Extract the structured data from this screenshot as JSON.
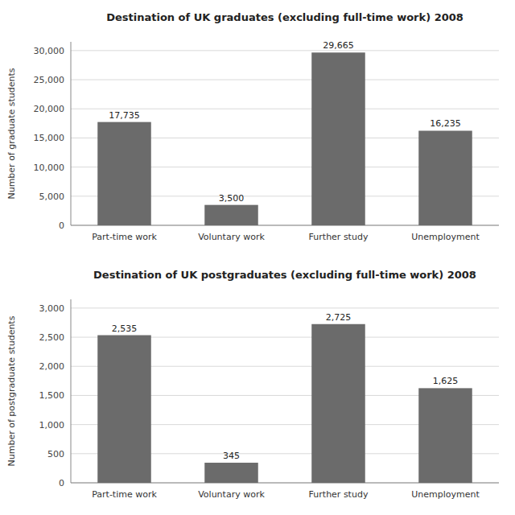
{
  "chart_data": [
    {
      "type": "bar",
      "title": "Destination of UK graduates (excluding full-time work) 2008",
      "ylabel": "Number of graduate students",
      "categories": [
        "Part-time work",
        "Voluntary work",
        "Further study",
        "Unemployment"
      ],
      "values": [
        17735,
        3500,
        29665,
        16235
      ],
      "value_labels": [
        "17,735",
        "3,500",
        "29,665",
        "16,235"
      ],
      "data_labels": true,
      "color": "#6b6b6b",
      "ylim": [
        0,
        31500
      ],
      "yticks": [
        0,
        {
          "value": 5000,
          "label": "5,000"
        },
        {
          "value": 10000,
          "label": "10,000"
        },
        {
          "value": 15000,
          "label": "15,000"
        },
        {
          "value": 20000,
          "label": "20,000"
        },
        {
          "value": 25000,
          "label": "25,000"
        },
        {
          "value": 30000,
          "label": "30,000"
        }
      ],
      "grid": true
    },
    {
      "type": "bar",
      "title": "Destination of UK postgraduates (excluding full-time work) 2008",
      "ylabel": "Number of postgraduate students",
      "categories": [
        "Part-time work",
        "Voluntary work",
        "Further study",
        "Unemployment"
      ],
      "values": [
        2535,
        345,
        2725,
        1625
      ],
      "value_labels": [
        "2,535",
        "345",
        "2,725",
        "1,625"
      ],
      "data_labels": true,
      "color": "#6b6b6b",
      "ylim": [
        0,
        3150
      ],
      "yticks": [
        0,
        500,
        {
          "value": 1000,
          "label": "1,000"
        },
        {
          "value": 1500,
          "label": "1,500"
        },
        {
          "value": 2000,
          "label": "2,000"
        },
        {
          "value": 2500,
          "label": "2,500"
        },
        {
          "value": 3000,
          "label": "3,000"
        }
      ],
      "grid": true
    }
  ]
}
